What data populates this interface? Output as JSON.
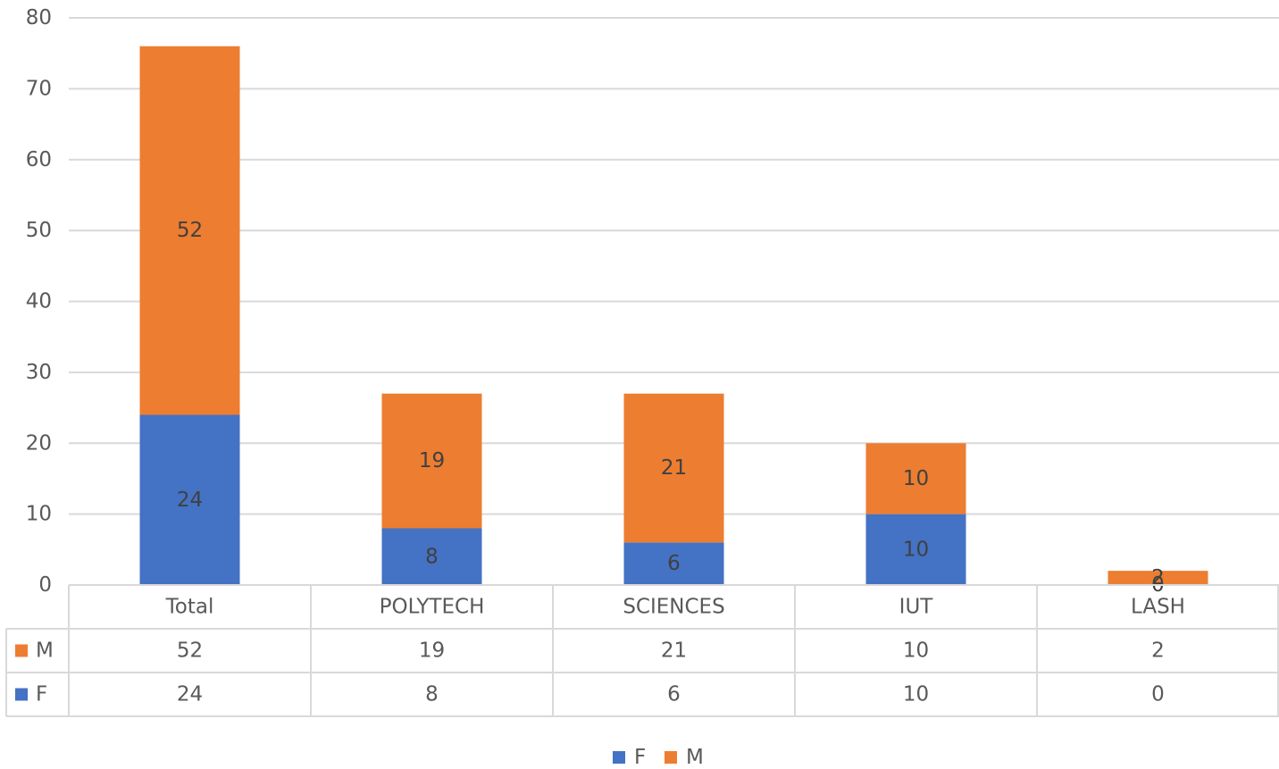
{
  "chart_data": {
    "type": "bar",
    "stacked": true,
    "categories": [
      "Total",
      "POLYTECH",
      "SCIENCES",
      "IUT",
      "LASH"
    ],
    "series": [
      {
        "name": "F",
        "values": [
          24,
          8,
          6,
          10,
          0
        ],
        "color": "#4472C4"
      },
      {
        "name": "M",
        "values": [
          52,
          19,
          21,
          10,
          2
        ],
        "color": "#ED7D31"
      }
    ],
    "ylim": [
      0,
      80
    ],
    "yticks": [
      0,
      10,
      20,
      30,
      40,
      50,
      60,
      70,
      80
    ],
    "grid": true,
    "data_table": true,
    "legend": {
      "position": "bottom",
      "entries": [
        "F",
        "M"
      ]
    },
    "title": "",
    "xlabel": "",
    "ylabel": ""
  }
}
